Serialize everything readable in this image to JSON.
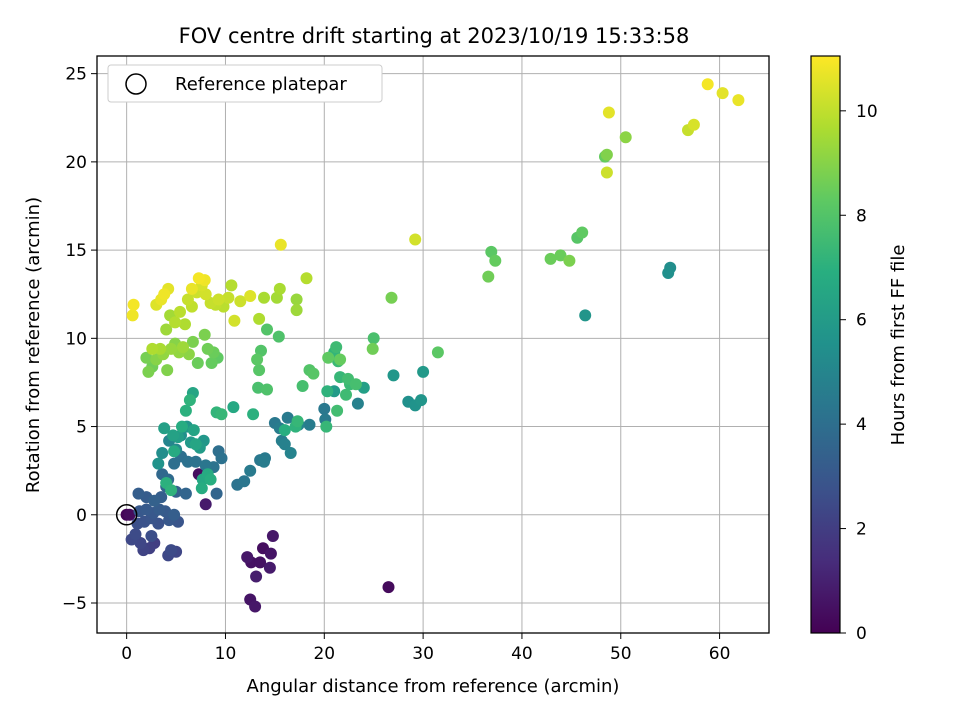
{
  "chart_data": {
    "type": "scatter",
    "title": "FOV centre drift starting at 2023/10/19 15:33:58",
    "xlabel": "Angular distance from reference (arcmin)",
    "ylabel": "Rotation from reference (arcmin)",
    "xlim": [
      -3,
      65
    ],
    "ylim": [
      -6.7,
      26
    ],
    "xticks": [
      0,
      10,
      20,
      30,
      40,
      50,
      60
    ],
    "yticks": [
      -5,
      0,
      5,
      10,
      15,
      20,
      25
    ],
    "grid": true,
    "legend": {
      "position": "top-left",
      "entries": [
        "Reference platepar"
      ]
    },
    "reference_point": {
      "x": 0,
      "y": 0
    },
    "colorbar": {
      "label": "Hours from first FF file",
      "range": [
        0,
        11.05
      ],
      "ticks": [
        0,
        2,
        4,
        6,
        8,
        10
      ],
      "colormap": "viridis"
    },
    "points": [
      [
        0,
        0,
        0.1
      ],
      [
        0.3,
        0,
        0.3
      ],
      [
        26.5,
        -4.1,
        0.3
      ],
      [
        12.5,
        -4.8,
        0.6
      ],
      [
        13,
        -5.2,
        0.7
      ],
      [
        12.2,
        -2.4,
        0.7
      ],
      [
        12.6,
        -2.7,
        0.5
      ],
      [
        13.8,
        -1.9,
        0.4
      ],
      [
        14.6,
        -2.2,
        0.6
      ],
      [
        14.8,
        -1.2,
        0.7
      ],
      [
        14.5,
        -3.0,
        0.8
      ],
      [
        13.5,
        -2.7,
        0.5
      ],
      [
        13.1,
        -3.5,
        0.9
      ],
      [
        7.3,
        2.3,
        0.4
      ],
      [
        8,
        0.6,
        0.8
      ],
      [
        0.5,
        -1.4,
        2.4
      ],
      [
        0.9,
        -1.1,
        2.5
      ],
      [
        1.4,
        -1.6,
        2.3
      ],
      [
        1.7,
        -2.0,
        2.2
      ],
      [
        2.3,
        -1.9,
        2.1
      ],
      [
        2.8,
        -1.6,
        2.0
      ],
      [
        2.5,
        -1.2,
        2.6
      ],
      [
        1.1,
        -0.5,
        2.7
      ],
      [
        1.8,
        -0.4,
        2.8
      ],
      [
        2.5,
        -0.2,
        2.9
      ],
      [
        3.2,
        -0.5,
        2.8
      ],
      [
        4.2,
        -2.3,
        2.4
      ],
      [
        4.5,
        -2.0,
        2.5
      ],
      [
        5.0,
        -2.1,
        2.3
      ],
      [
        1.3,
        0.2,
        3.0
      ],
      [
        2.0,
        0.3,
        3.1
      ],
      [
        2.7,
        0.1,
        3.0
      ],
      [
        3.3,
        0.3,
        3.2
      ],
      [
        3.9,
        0.2,
        3.1
      ],
      [
        4.3,
        -0.3,
        3.0
      ],
      [
        4.8,
        0.0,
        3.3
      ],
      [
        5.2,
        -0.4,
        2.9
      ],
      [
        1.2,
        1.2,
        3.3
      ],
      [
        2.0,
        1.0,
        3.2
      ],
      [
        2.8,
        0.8,
        3.4
      ],
      [
        3.5,
        1.0,
        3.3
      ],
      [
        4.0,
        1.6,
        3.5
      ],
      [
        5.0,
        1.3,
        3.4
      ],
      [
        6.0,
        1.2,
        3.6
      ],
      [
        9.1,
        1.2,
        3.6
      ],
      [
        3.6,
        2.3,
        3.7
      ],
      [
        4.2,
        2.0,
        3.8
      ],
      [
        4.8,
        2.9,
        4.0
      ],
      [
        5.5,
        3.3,
        4.0
      ],
      [
        6.2,
        3.0,
        4.1
      ],
      [
        7.0,
        3.0,
        4.2
      ],
      [
        8.0,
        2.8,
        4.3
      ],
      [
        8.8,
        2.7,
        4.2
      ],
      [
        9.3,
        3.6,
        4.0
      ],
      [
        9.6,
        3.2,
        4.1
      ],
      [
        11.2,
        1.7,
        4.2
      ],
      [
        11.9,
        1.9,
        4.3
      ],
      [
        12.5,
        2.5,
        4.5
      ],
      [
        13.5,
        3.1,
        4.4
      ],
      [
        13.9,
        3.0,
        4.6
      ],
      [
        14.0,
        3.2,
        4.5
      ],
      [
        15.0,
        5.2,
        4.4
      ],
      [
        15.5,
        4.9,
        4.6
      ],
      [
        15.7,
        4.2,
        4.7
      ],
      [
        16.0,
        4.0,
        4.8
      ],
      [
        16.3,
        5.5,
        4.5
      ],
      [
        16.6,
        3.5,
        4.9
      ],
      [
        17.4,
        5.1,
        5.0
      ],
      [
        18.5,
        5.1,
        4.6
      ],
      [
        20.1,
        5.4,
        4.5
      ],
      [
        20.0,
        6.0,
        4.4
      ],
      [
        23.4,
        6.3,
        4.8
      ],
      [
        28.5,
        6.4,
        5.5
      ],
      [
        29.2,
        6.2,
        5.6
      ],
      [
        29.8,
        6.5,
        5.7
      ],
      [
        30.0,
        8.1,
        5.9
      ],
      [
        27.0,
        7.9,
        5.8
      ],
      [
        46.4,
        11.3,
        5.7
      ],
      [
        54.8,
        13.7,
        5.5
      ],
      [
        55.0,
        14.0,
        5.4
      ],
      [
        21.0,
        7.0,
        6.0
      ],
      [
        24.0,
        7.2,
        6.2
      ],
      [
        3.2,
        2.9,
        5.6
      ],
      [
        3.6,
        3.5,
        5.4
      ],
      [
        4.3,
        4.2,
        5.0
      ],
      [
        5.0,
        3.7,
        5.2
      ],
      [
        5.5,
        4.5,
        5.5
      ],
      [
        6.1,
        5.0,
        5.7
      ],
      [
        6.5,
        4.1,
        5.9
      ],
      [
        7.4,
        3.8,
        6.0
      ],
      [
        7.8,
        4.2,
        5.8
      ],
      [
        3.8,
        4.9,
        6.2
      ],
      [
        4.7,
        4.5,
        6.3
      ],
      [
        5.2,
        4.4,
        6.1
      ],
      [
        6.8,
        4.8,
        6.4
      ],
      [
        7.0,
        4.0,
        6.5
      ],
      [
        7.7,
        2.0,
        6.6
      ],
      [
        8.2,
        2.3,
        6.7
      ],
      [
        7.6,
        1.5,
        6.8
      ],
      [
        8.5,
        2.0,
        6.9
      ],
      [
        4.0,
        1.8,
        7.0
      ],
      [
        4.5,
        1.4,
        7.1
      ],
      [
        4.8,
        3.6,
        6.7
      ],
      [
        5.6,
        5.0,
        6.8
      ],
      [
        6.0,
        5.9,
        7.0
      ],
      [
        6.4,
        6.5,
        7.1
      ],
      [
        6.7,
        6.9,
        6.5
      ],
      [
        9.1,
        5.8,
        7.2
      ],
      [
        9.6,
        5.7,
        7.3
      ],
      [
        10.8,
        6.1,
        6.6
      ],
      [
        12.8,
        5.7,
        7.0
      ],
      [
        16.0,
        4.8,
        6.9
      ],
      [
        17.1,
        5.0,
        7.1
      ],
      [
        17.3,
        5.3,
        7.3
      ],
      [
        20.2,
        5.0,
        7.3
      ],
      [
        20.3,
        7.0,
        7.1
      ],
      [
        21.0,
        9.2,
        7.2
      ],
      [
        21.4,
        8.7,
        7.4
      ],
      [
        21.2,
        9.5,
        7.5
      ],
      [
        21.6,
        7.8,
        7.3
      ],
      [
        22.2,
        6.8,
        7.5
      ],
      [
        22.4,
        7.7,
        7.6
      ],
      [
        22.6,
        7.4,
        7.4
      ],
      [
        21.3,
        5.9,
        7.6
      ],
      [
        23.2,
        7.4,
        7.7
      ],
      [
        13.3,
        7.2,
        7.8
      ],
      [
        14.2,
        7.1,
        7.9
      ],
      [
        17.8,
        7.3,
        7.7
      ],
      [
        2.0,
        8.9,
        8.7
      ],
      [
        2.6,
        8.4,
        8.6
      ],
      [
        2.2,
        8.1,
        8.8
      ],
      [
        3.0,
        8.8,
        9.0
      ],
      [
        3.7,
        9.1,
        9.2
      ],
      [
        4.1,
        8.2,
        8.9
      ],
      [
        4.5,
        9.4,
        9.3
      ],
      [
        4.9,
        9.7,
        9.0
      ],
      [
        5.3,
        9.2,
        9.2
      ],
      [
        5.7,
        9.5,
        9.4
      ],
      [
        6.3,
        9.1,
        9.1
      ],
      [
        6.7,
        9.8,
        8.8
      ],
      [
        7.2,
        8.6,
        8.5
      ],
      [
        7.9,
        10.2,
        8.8
      ],
      [
        8.2,
        9.4,
        8.6
      ],
      [
        8.8,
        9.2,
        8.5
      ],
      [
        8.6,
        8.6,
        8.4
      ],
      [
        9.2,
        8.9,
        8.3
      ],
      [
        13.2,
        8.8,
        8.2
      ],
      [
        13.4,
        8.2,
        8.1
      ],
      [
        13.6,
        9.3,
        8.0
      ],
      [
        14.2,
        10.5,
        8.0
      ],
      [
        15.4,
        10.1,
        7.9
      ],
      [
        18.5,
        8.2,
        8.0
      ],
      [
        18.9,
        8.0,
        8.1
      ],
      [
        20.4,
        8.9,
        8.3
      ],
      [
        21.6,
        8.8,
        8.4
      ],
      [
        25.0,
        10.0,
        7.8
      ],
      [
        24.9,
        9.4,
        8.6
      ],
      [
        26.8,
        12.3,
        8.7
      ],
      [
        31.5,
        9.2,
        8.2
      ],
      [
        36.6,
        13.5,
        8.6
      ],
      [
        36.9,
        14.9,
        8.2
      ],
      [
        37.3,
        14.4,
        8.4
      ],
      [
        42.9,
        14.5,
        8.5
      ],
      [
        43.9,
        14.7,
        8.5
      ],
      [
        44.8,
        14.4,
        8.8
      ],
      [
        45.6,
        15.7,
        8.1
      ],
      [
        46.1,
        16.0,
        8.3
      ],
      [
        48.4,
        20.3,
        8.4
      ],
      [
        48.6,
        20.4,
        8.9
      ],
      [
        50.5,
        21.4,
        9.1
      ],
      [
        2.6,
        9.4,
        9.7
      ],
      [
        3.4,
        9.4,
        9.6
      ],
      [
        4.0,
        10.5,
        9.4
      ],
      [
        4.4,
        11.3,
        9.5
      ],
      [
        4.9,
        10.9,
        9.8
      ],
      [
        5.4,
        11.5,
        9.9
      ],
      [
        5.9,
        10.8,
        9.7
      ],
      [
        6.2,
        12.2,
        10.1
      ],
      [
        6.6,
        11.8,
        10.0
      ],
      [
        7.1,
        12.6,
        10.2
      ],
      [
        7.6,
        13.0,
        10.4
      ],
      [
        8.0,
        12.5,
        10.3
      ],
      [
        8.5,
        12.0,
        10.1
      ],
      [
        9.0,
        11.9,
        10.0
      ],
      [
        9.3,
        12.2,
        10.2
      ],
      [
        9.8,
        11.8,
        9.9
      ],
      [
        10.3,
        12.3,
        10.1
      ],
      [
        10.6,
        13.0,
        9.8
      ],
      [
        10.9,
        11.0,
        10.3
      ],
      [
        11.5,
        12.1,
        10.2
      ],
      [
        12.5,
        12.4,
        10.5
      ],
      [
        13.4,
        11.1,
        9.7
      ],
      [
        13.9,
        12.3,
        9.6
      ],
      [
        15.2,
        12.3,
        9.5
      ],
      [
        15.5,
        12.8,
        9.6
      ],
      [
        17.2,
        11.6,
        9.4
      ],
      [
        17.2,
        12.2,
        9.3
      ],
      [
        18.2,
        13.4,
        9.8
      ],
      [
        7.9,
        13.3,
        10.8
      ],
      [
        7.3,
        13.4,
        10.9
      ],
      [
        6.6,
        12.8,
        10.7
      ],
      [
        4.2,
        12.8,
        10.6
      ],
      [
        3.8,
        12.5,
        10.8
      ],
      [
        3.5,
        12.2,
        10.7
      ],
      [
        3.0,
        11.9,
        10.5
      ],
      [
        0.7,
        11.9,
        10.9
      ],
      [
        0.6,
        11.3,
        10.8
      ],
      [
        15.6,
        15.3,
        10.7
      ],
      [
        29.2,
        15.6,
        10.3
      ],
      [
        48.6,
        19.4,
        10.2
      ],
      [
        48.8,
        22.8,
        10.6
      ],
      [
        56.8,
        21.8,
        10.1
      ],
      [
        57.4,
        22.1,
        10.4
      ],
      [
        58.8,
        24.4,
        10.9
      ],
      [
        60.3,
        23.9,
        10.6
      ],
      [
        61.9,
        23.5,
        10.7
      ]
    ]
  }
}
